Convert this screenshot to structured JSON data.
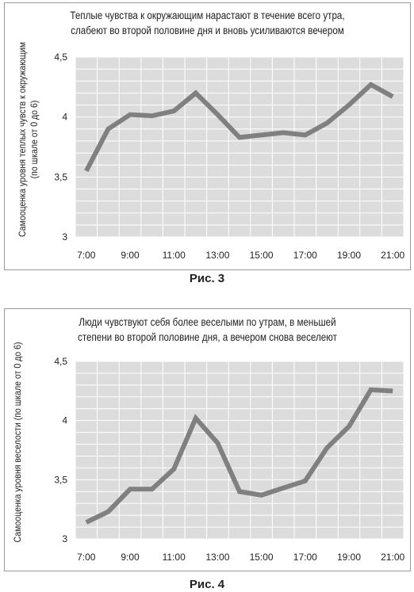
{
  "chart_data": [
    {
      "type": "line",
      "title_lines": [
        "Теплые чувства к окружающим нарастают в течение всего утра,",
        "слабеют во второй половине дня и вновь усиливаются вечером"
      ],
      "ylabel_lines": [
        "Самооценка уровня теплых чувств к окружающим",
        "(по шкале от 0 до 6)"
      ],
      "xlabel": "",
      "x_ticks": [
        "7:00",
        "9:00",
        "11:00",
        "13:00",
        "15:00",
        "17:00",
        "19:00",
        "21:00"
      ],
      "y_ticks": [
        "3",
        "3,5",
        "4",
        "4,5"
      ],
      "ylim": [
        3,
        4.5
      ],
      "x": [
        "7:00",
        "8:00",
        "9:00",
        "10:00",
        "11:00",
        "12:00",
        "13:00",
        "14:00",
        "15:00",
        "16:00",
        "17:00",
        "18:00",
        "19:00",
        "20:00",
        "21:00"
      ],
      "values": [
        3.55,
        3.9,
        4.02,
        4.01,
        4.05,
        4.2,
        4.02,
        3.83,
        3.85,
        3.87,
        3.85,
        3.95,
        4.1,
        4.27,
        4.17
      ],
      "line_color": "#808080",
      "plot_bg": "#dcdcdc",
      "grid": true,
      "caption": "Рис. 3"
    },
    {
      "type": "line",
      "title_lines": [
        "Люди чувствуют себя более веселыми по утрам, в меньшей",
        "степени во второй половине дня, а вечером снова веселеют"
      ],
      "ylabel_lines": [
        "Самооценка уровня веселости (по шкале от 0 до 6)"
      ],
      "xlabel": "",
      "x_ticks": [
        "7:00",
        "9:00",
        "11:00",
        "13:00",
        "15:00",
        "17:00",
        "19:00",
        "21:00"
      ],
      "y_ticks": [
        "3",
        "3,5",
        "4",
        "4,5"
      ],
      "ylim": [
        3,
        4.5
      ],
      "x": [
        "7:00",
        "8:00",
        "9:00",
        "10:00",
        "11:00",
        "12:00",
        "13:00",
        "14:00",
        "15:00",
        "16:00",
        "17:00",
        "18:00",
        "19:00",
        "20:00",
        "21:00"
      ],
      "values": [
        3.14,
        3.23,
        3.42,
        3.42,
        3.59,
        4.02,
        3.81,
        3.4,
        3.37,
        3.43,
        3.49,
        3.77,
        3.95,
        4.26,
        4.25
      ],
      "line_color": "#808080",
      "plot_bg": "#dcdcdc",
      "grid": true,
      "caption": "Рис. 4"
    }
  ]
}
